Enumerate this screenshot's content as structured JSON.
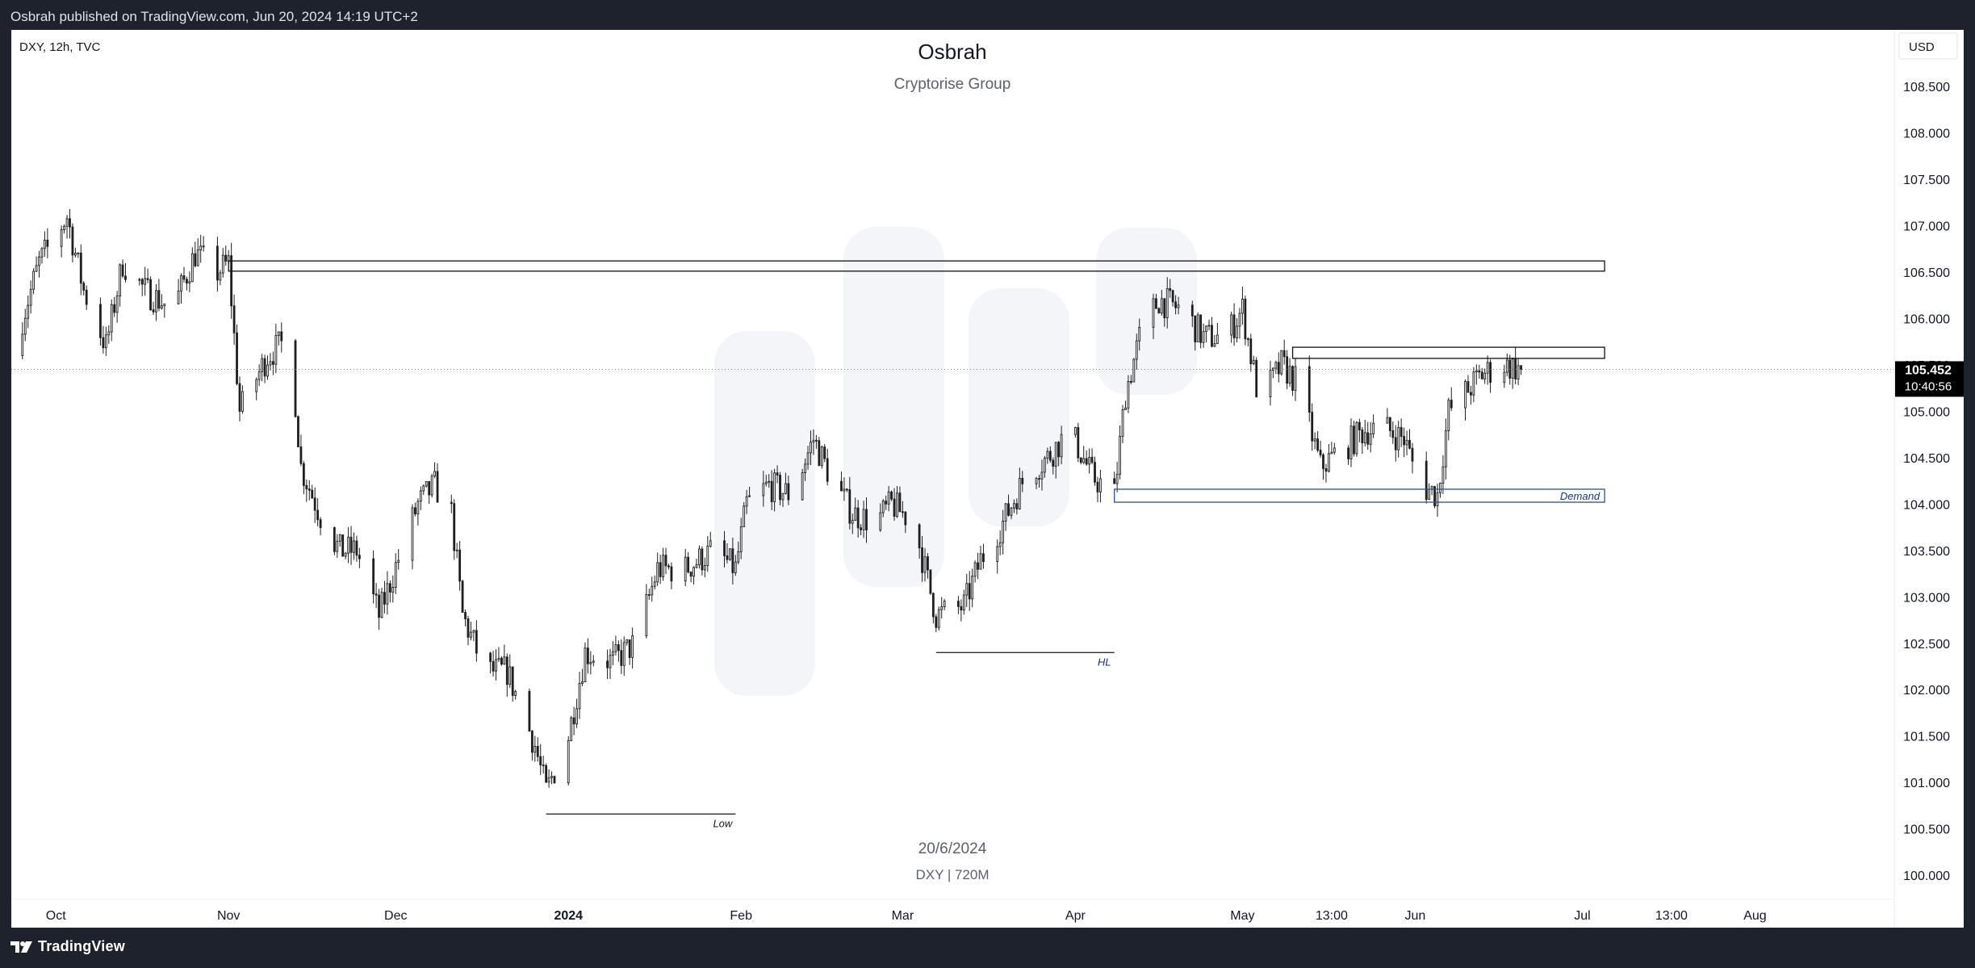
{
  "header": {
    "published_text": "Osbrah published on TradingView.com, Jun 20, 2024 14:19 UTC+2"
  },
  "footer": {
    "brand": "TradingView"
  },
  "symbol_info": "DXY, 12h, TVC",
  "currency_button": "USD",
  "watermark": {
    "title": "Osbrah",
    "subtitle": "Cryptorise Group",
    "date": "20/6/2024",
    "symbol_line": "DXY | 720M"
  },
  "price_label": {
    "value": "105.452",
    "countdown": "10:40:56"
  },
  "colors": {
    "candle": "#1e1e1e",
    "zone": "#2d4fa1",
    "label": "#1e2e8c",
    "frame": "#1e222d"
  },
  "chart_data": {
    "type": "candlestick",
    "title": "",
    "xlabel": "",
    "ylabel": "",
    "y_unit": "USD",
    "x_range": [
      "2023-09-23",
      "2024-08-26"
    ],
    "ylim": [
      99.74,
      109.11
    ],
    "y_ticks": [
      "108.500",
      "108.000",
      "107.500",
      "107.000",
      "106.500",
      "106.000",
      "105.500",
      "105.000",
      "104.500",
      "104.000",
      "103.500",
      "103.000",
      "102.500",
      "102.000",
      "101.500",
      "101.000",
      "100.500",
      "100.000"
    ],
    "x_ticks": [
      {
        "label": "Oct",
        "date": "2023-10-01",
        "bold": false
      },
      {
        "label": "Nov",
        "date": "2023-11-01",
        "bold": false
      },
      {
        "label": "Dec",
        "date": "2023-12-01",
        "bold": false
      },
      {
        "label": "2024",
        "date": "2024-01-01",
        "bold": true
      },
      {
        "label": "Feb",
        "date": "2024-02-01",
        "bold": false
      },
      {
        "label": "Mar",
        "date": "2024-03-01",
        "bold": false
      },
      {
        "label": "Apr",
        "date": "2024-04-01",
        "bold": false
      },
      {
        "label": "May",
        "date": "2024-05-01",
        "bold": false
      },
      {
        "label": "13:00",
        "date": "2024-05-17",
        "bold": false
      },
      {
        "label": "Jun",
        "date": "2024-06-01",
        "bold": false
      },
      {
        "label": "Jul",
        "date": "2024-07-01",
        "bold": false
      },
      {
        "label": "13:00",
        "date": "2024-07-17",
        "bold": false
      },
      {
        "label": "Aug",
        "date": "2024-08-01",
        "bold": false
      }
    ],
    "last_price": 105.452,
    "anchors": [
      [
        "2023-09-23",
        105.6
      ],
      [
        "2023-09-28",
        106.6
      ],
      [
        "2023-10-03",
        107.1
      ],
      [
        "2023-10-06",
        106.3
      ],
      [
        "2023-10-10",
        105.7
      ],
      [
        "2023-10-13",
        106.6
      ],
      [
        "2023-10-17",
        106.3
      ],
      [
        "2023-10-22",
        106.1
      ],
      [
        "2023-10-26",
        106.7
      ],
      [
        "2023-10-30",
        106.5
      ],
      [
        "2023-11-01",
        106.6
      ],
      [
        "2023-11-03",
        105.0
      ],
      [
        "2023-11-08",
        105.6
      ],
      [
        "2023-11-12",
        105.8
      ],
      [
        "2023-11-14",
        104.4
      ],
      [
        "2023-11-18",
        103.8
      ],
      [
        "2023-11-21",
        103.5
      ],
      [
        "2023-11-24",
        103.5
      ],
      [
        "2023-11-28",
        102.8
      ],
      [
        "2023-12-02",
        103.5
      ],
      [
        "2023-12-05",
        104.0
      ],
      [
        "2023-12-08",
        104.2
      ],
      [
        "2023-12-11",
        103.9
      ],
      [
        "2023-12-13",
        102.8
      ],
      [
        "2023-12-17",
        102.2
      ],
      [
        "2023-12-21",
        102.2
      ],
      [
        "2023-12-26",
        101.4
      ],
      [
        "2023-12-28",
        100.9
      ],
      [
        "2024-01-01",
        101.5
      ],
      [
        "2024-01-04",
        102.4
      ],
      [
        "2024-01-09",
        102.3
      ],
      [
        "2024-01-13",
        102.5
      ],
      [
        "2024-01-17",
        103.3
      ],
      [
        "2024-01-22",
        103.3
      ],
      [
        "2024-01-27",
        103.5
      ],
      [
        "2024-01-31",
        103.3
      ],
      [
        "2024-02-02",
        104.0
      ],
      [
        "2024-02-06",
        104.2
      ],
      [
        "2024-02-10",
        104.1
      ],
      [
        "2024-02-14",
        104.7
      ],
      [
        "2024-02-17",
        104.3
      ],
      [
        "2024-02-21",
        103.9
      ],
      [
        "2024-02-25",
        103.8
      ],
      [
        "2024-02-28",
        104.0
      ],
      [
        "2024-03-03",
        103.8
      ],
      [
        "2024-03-07",
        102.8
      ],
      [
        "2024-03-12",
        102.9
      ],
      [
        "2024-03-15",
        103.4
      ],
      [
        "2024-03-19",
        103.8
      ],
      [
        "2024-03-23",
        104.3
      ],
      [
        "2024-03-27",
        104.5
      ],
      [
        "2024-03-31",
        104.8
      ],
      [
        "2024-04-04",
        104.3
      ],
      [
        "2024-04-08",
        104.1
      ],
      [
        "2024-04-10",
        105.2
      ],
      [
        "2024-04-13",
        105.9
      ],
      [
        "2024-04-16",
        106.2
      ],
      [
        "2024-04-20",
        106.1
      ],
      [
        "2024-04-24",
        105.8
      ],
      [
        "2024-04-28",
        105.8
      ],
      [
        "2024-05-01",
        106.1
      ],
      [
        "2024-05-04",
        105.1
      ],
      [
        "2024-05-08",
        105.5
      ],
      [
        "2024-05-11",
        105.3
      ],
      [
        "2024-05-15",
        104.4
      ],
      [
        "2024-05-19",
        104.6
      ],
      [
        "2024-05-23",
        104.8
      ],
      [
        "2024-05-27",
        104.8
      ],
      [
        "2024-05-30",
        104.7
      ],
      [
        "2024-06-02",
        104.2
      ],
      [
        "2024-06-05",
        104.1
      ],
      [
        "2024-06-07",
        105.0
      ],
      [
        "2024-06-10",
        105.2
      ],
      [
        "2024-06-13",
        105.4
      ],
      [
        "2024-06-17",
        105.5
      ],
      [
        "2024-06-20",
        105.452
      ]
    ],
    "zones": [
      {
        "name": "supply-top",
        "label": "",
        "start": "2023-11-01",
        "end": "2024-07-05",
        "low": 106.51,
        "high": 106.62,
        "color": "#111111"
      },
      {
        "name": "supply-mid",
        "label": "",
        "start": "2024-05-10",
        "end": "2024-07-05",
        "low": 105.57,
        "high": 105.69,
        "color": "#111111"
      },
      {
        "name": "demand",
        "label": "Demand",
        "start": "2024-04-08",
        "end": "2024-07-05",
        "low": 104.02,
        "high": 104.16,
        "color": "#2d4fa1"
      }
    ],
    "levels": [
      {
        "name": "low",
        "label": "Low",
        "start": "2023-12-28",
        "end": "2024-01-31",
        "value": 100.66
      },
      {
        "name": "hl",
        "label": "HL",
        "start": "2024-03-07",
        "end": "2024-04-08",
        "value": 102.4
      }
    ]
  }
}
